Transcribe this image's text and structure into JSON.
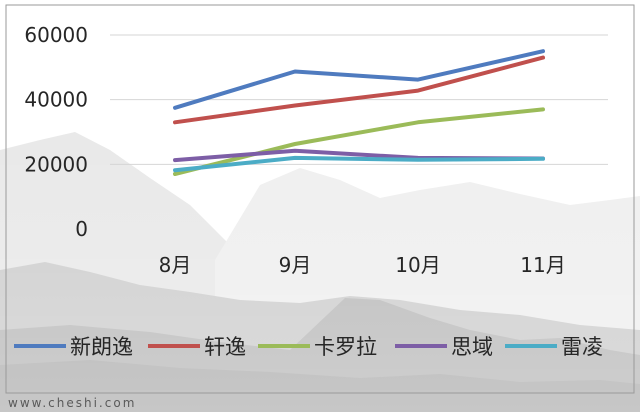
{
  "chart_data": {
    "type": "line",
    "categories": [
      "8月",
      "9月",
      "10月",
      "11月"
    ],
    "series": [
      {
        "name": "新朗逸",
        "color": "#4f7bbf",
        "values": [
          37500,
          48700,
          46200,
          55000
        ]
      },
      {
        "name": "轩逸",
        "color": "#c0504d",
        "values": [
          33000,
          38200,
          42800,
          53000
        ]
      },
      {
        "name": "卡罗拉",
        "color": "#9bbb59",
        "values": [
          17000,
          26300,
          33000,
          37000
        ]
      },
      {
        "name": "思域",
        "color": "#7d5ea6",
        "values": [
          21300,
          24200,
          22000,
          21800
        ]
      },
      {
        "name": "雷凌",
        "color": "#4bacc6",
        "values": [
          18200,
          22000,
          21400,
          21700
        ]
      }
    ],
    "ylim": [
      0,
      60000
    ],
    "yticks": [
      "0",
      "20000",
      "40000",
      "60000"
    ],
    "grid": true,
    "legend": "bottom"
  },
  "watermark": "www.cheshi.com"
}
